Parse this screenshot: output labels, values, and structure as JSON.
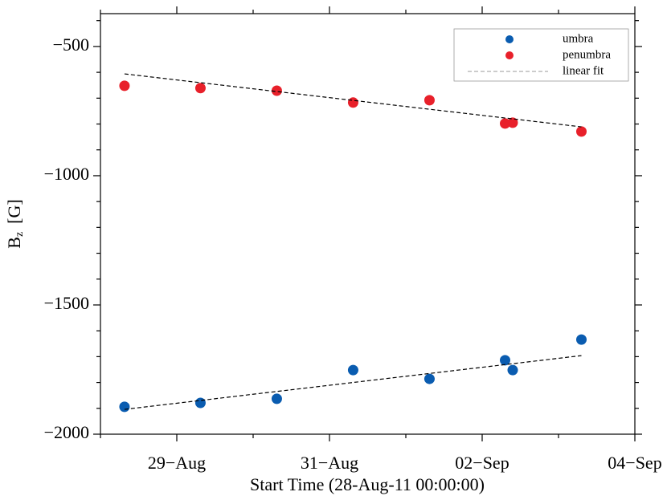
{
  "chart_data": {
    "type": "scatter",
    "xlabel": "Start Time (28-Aug-11 00:00:00)",
    "ylabel": {
      "main": "B",
      "sub": "z",
      "unit": "[G]"
    },
    "xlim": [
      0,
      7
    ],
    "ylim": [
      -2000,
      -373
    ],
    "xticks": [
      {
        "value": 1,
        "label": "29−Aug"
      },
      {
        "value": 3,
        "label": "31−Aug"
      },
      {
        "value": 5,
        "label": "02−Sep"
      },
      {
        "value": 7,
        "label": "04−Sep"
      }
    ],
    "xminorticks": [
      0,
      2,
      4,
      6
    ],
    "yticks": [
      {
        "value": -2000,
        "label": "−2000"
      },
      {
        "value": -1500,
        "label": "−1500"
      },
      {
        "value": -1000,
        "label": "−1000"
      },
      {
        "value": -500,
        "label": "−500"
      }
    ],
    "yminorticks": [
      -1900,
      -1800,
      -1700,
      -1600,
      -1400,
      -1300,
      -1200,
      -1100,
      -900,
      -800,
      -700,
      -600,
      -400
    ],
    "legend": "upper right",
    "series": [
      {
        "name": "umbra",
        "color": "#0a5cb0",
        "x": [
          0.315,
          1.31,
          2.31,
          3.31,
          4.31,
          5.3,
          5.4,
          6.3
        ],
        "values": [
          -1894,
          -1879,
          -1863,
          -1752,
          -1786,
          -1714,
          -1752,
          -1634
        ]
      },
      {
        "name": "penumbra",
        "color": "#e8202a",
        "x": [
          0.315,
          1.31,
          2.31,
          3.31,
          4.31,
          5.3,
          5.4,
          6.3
        ],
        "values": [
          -652,
          -661,
          -671,
          -717,
          -708,
          -798,
          -795,
          -829
        ]
      },
      {
        "name": "linear fit",
        "color": "#000000",
        "dashed": true,
        "x": [
          0.315,
          6.3
        ],
        "values": [
          -1904,
          -1696
        ]
      },
      {
        "name": null,
        "color": "#000000",
        "dashed": true,
        "x": [
          0.315,
          6.3
        ],
        "values": [
          -606,
          -811
        ]
      }
    ]
  }
}
